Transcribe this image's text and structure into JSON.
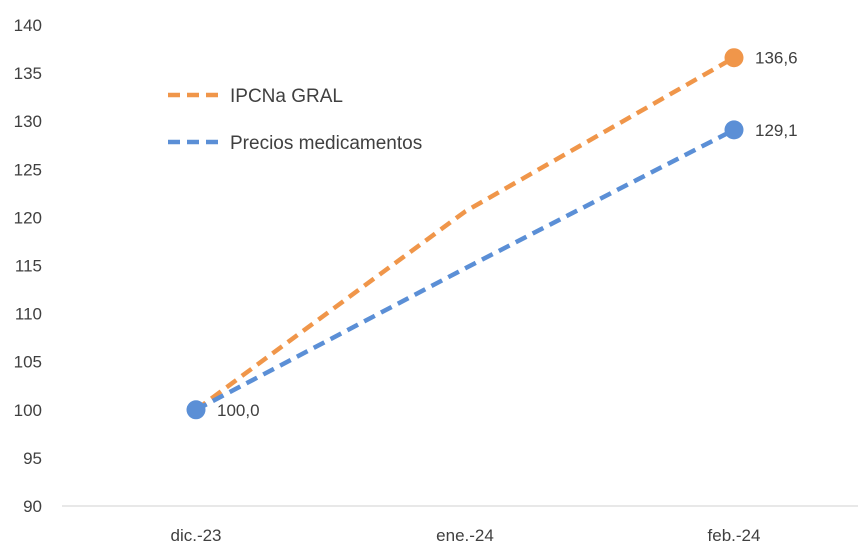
{
  "chart_data": {
    "type": "line",
    "title": "",
    "xlabel": "",
    "ylabel": "",
    "categories": [
      "dic.-23",
      "ene.-24",
      "feb.-24"
    ],
    "ylim": [
      90,
      140
    ],
    "yticks": [
      90,
      95,
      100,
      105,
      110,
      115,
      120,
      125,
      130,
      135,
      140
    ],
    "grid": false,
    "legend": "top-left",
    "series": [
      {
        "name": "IPCNa GRAL",
        "values": [
          100.0,
          120.6,
          136.6
        ],
        "color": "#F0964A",
        "line_style": "dashed",
        "point_labels": [
          null,
          null,
          "136,6"
        ]
      },
      {
        "name": "Precios medicamentos",
        "values": [
          100.0,
          114.7,
          129.1
        ],
        "color": "#5B8FD6",
        "line_style": "dashed",
        "point_labels": [
          "100,0",
          null,
          "129,1"
        ]
      }
    ]
  }
}
